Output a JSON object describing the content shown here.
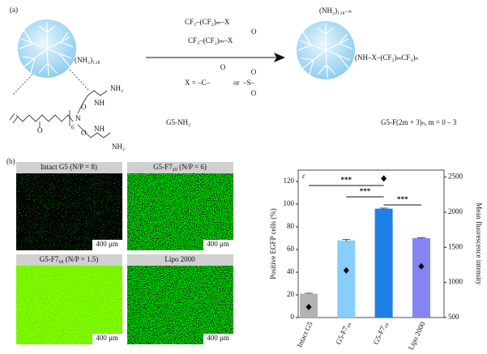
{
  "panel_a": {
    "label": "(a)",
    "core_groups": "(NH₂)₁₂₈",
    "reagent_1": "CF₃–(CF₂)ₘ–X",
    "reagent_2": "CF₃–(CF₂)ₘ–X",
    "reagent_bridge": "O",
    "x_def": "X = –C–",
    "x_or": "or",
    "x_alt": "–S–",
    "x_o1": "O",
    "x_o2": "O",
    "x_o3": "O",
    "product_amines": "(NH₂)₁₂₈₋ₙ",
    "product_chains": "(NH–X–(CF₂)ₘCF₃)ₙ",
    "structure_labels": [
      "O",
      "N",
      "6",
      "NH₂",
      "NH",
      "O",
      "O",
      "NH",
      "NH₂"
    ],
    "caption_left": "G5-NH₂",
    "caption_right": "G5-F(2m + 3)ₙ, m = 0 – 3"
  },
  "panel_b": {
    "label": "(b)",
    "images": [
      {
        "title": "Intact G5 (N/P = 8)",
        "scale": "400 μm"
      },
      {
        "title": "G5-F7₄₉ (N/P = 6)",
        "scale": "400 μm"
      },
      {
        "title": "G5-F7₆₈ (N/P = 1.5)",
        "scale": "400 μm"
      },
      {
        "title": "Lipo 2000",
        "scale": "400 μm"
      }
    ]
  },
  "chart_data": {
    "type": "bar",
    "label": "c",
    "ylabel": "Positive EGFP cells (%)",
    "y2label": "Mean fluorescence intensity",
    "categories": [
      "Intact G5",
      "G5-F7₄₉",
      "G5-F7₆₈",
      "Lipo 2000"
    ],
    "series": [
      {
        "values": [
          21,
          68,
          96,
          70
        ],
        "errors": [
          0.5,
          1,
          0.5,
          0.5
        ],
        "colors": [
          "#b3b3b3",
          "#87cefa",
          "#1e7fe6",
          "#8585f2"
        ]
      },
      {
        "type": "scatter",
        "axis": "y2",
        "values": [
          650,
          1170,
          2480,
          1230
        ],
        "color": "#000000"
      }
    ],
    "ylim": [
      0,
      130
    ],
    "yticks": [
      0,
      20,
      40,
      60,
      80,
      100,
      120
    ],
    "y2lim": [
      500,
      2600
    ],
    "y2ticks": [
      500,
      1000,
      1500,
      2000,
      2500
    ],
    "annotations": [
      "***",
      "***",
      "***"
    ]
  }
}
